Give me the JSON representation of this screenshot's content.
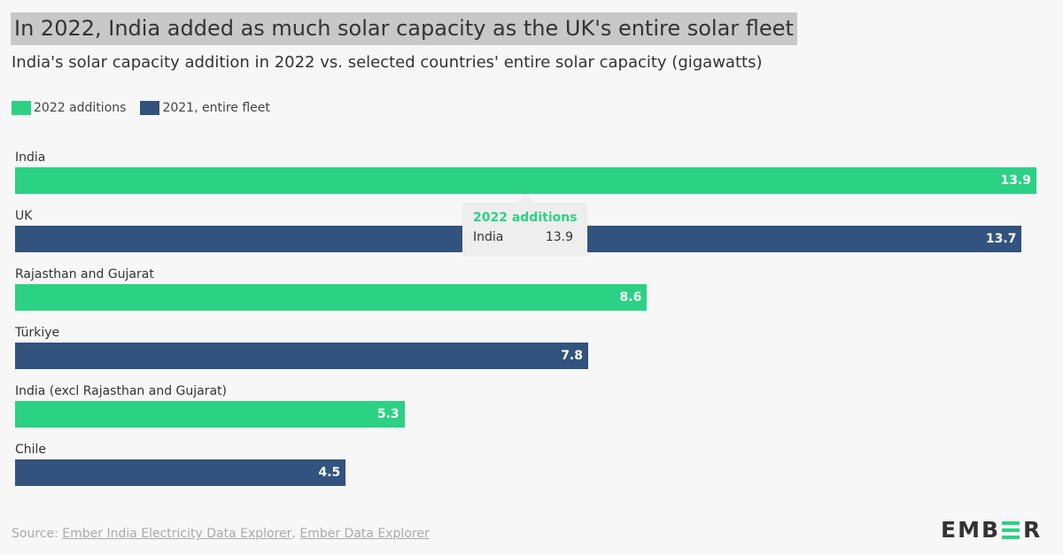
{
  "title": "In 2022, India added as much solar capacity as the UK's entire solar fleet",
  "subtitle": "India's solar capacity addition in 2022 vs. selected countries' entire solar capacity (gigawatts)",
  "colors": {
    "additions": "#2bd283",
    "fleet": "#32537d"
  },
  "chart_data": {
    "type": "bar",
    "orientation": "horizontal",
    "title": "In 2022, India added as much solar capacity as the UK's entire solar fleet",
    "subtitle": "India's solar capacity addition in 2022 vs. selected countries' entire solar capacity (gigawatts)",
    "legend": [
      {
        "name": "2022 additions",
        "color": "#2bd283"
      },
      {
        "name": "2021, entire fleet",
        "color": "#32537d"
      }
    ],
    "legend_position": "top-left",
    "categories": [
      "India",
      "UK",
      "Rajasthan and Gujarat",
      "Türkiye",
      "India (excl Rajasthan and Gujarat)",
      "Chile"
    ],
    "values": [
      13.9,
      13.7,
      8.6,
      7.8,
      5.3,
      4.5
    ],
    "labels": [
      "13.9",
      "13.7",
      "8.6",
      "7.8",
      "5.3",
      "4.5"
    ],
    "series_of_bar": [
      "2022 additions",
      "2021, entire fleet",
      "2022 additions",
      "2021, entire fleet",
      "2022 additions",
      "2021, entire fleet"
    ],
    "xlim": [
      0,
      13.9
    ],
    "grid": false
  },
  "tooltip": {
    "title": "2022 additions",
    "name": "India",
    "value": "13.9"
  },
  "source": {
    "prefix": "Source: ",
    "link1": "Ember India Electricity Data Explorer",
    "sep": ", ",
    "link2": "Ember Data Explorer"
  },
  "logo": {
    "text": "EMBER"
  }
}
